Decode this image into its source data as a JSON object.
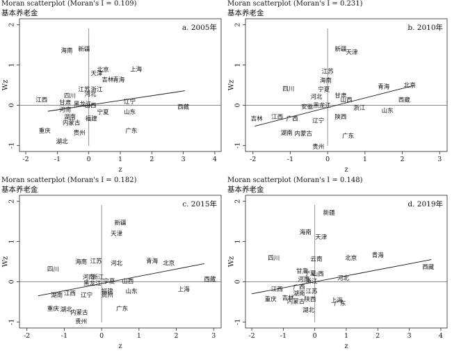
{
  "chart_data": [
    {
      "type": "scatter",
      "title": "Moran scatterplot (Moran's I = 0.109)",
      "subtitle": "基本养老金",
      "panel_label": "a. 2005年",
      "xlabel": "z",
      "ylabel": "Wz",
      "xlim": [
        -2.2,
        4.2
      ],
      "ylim": [
        -1.15,
        2.15
      ],
      "xticks": [
        -2,
        -1,
        0,
        1,
        2,
        3,
        4
      ],
      "yticks": [
        -1,
        0,
        1,
        2
      ],
      "regression": {
        "x": [
          -1.3,
          3.05
        ],
        "y": [
          -0.15,
          0.36
        ]
      },
      "points": [
        {
          "label": "海南",
          "x": -0.7,
          "y": 1.35
        },
        {
          "label": "新疆",
          "x": -0.15,
          "y": 1.38
        },
        {
          "label": "天津",
          "x": 0.25,
          "y": 0.78
        },
        {
          "label": "上海",
          "x": 1.5,
          "y": 0.88
        },
        {
          "label": "北京",
          "x": 0.45,
          "y": 0.87
        },
        {
          "label": "青海",
          "x": 0.95,
          "y": 0.62
        },
        {
          "label": "吉林",
          "x": 0.6,
          "y": 0.62
        },
        {
          "label": "江苏",
          "x": -0.15,
          "y": 0.38
        },
        {
          "label": "浙江",
          "x": 0.25,
          "y": 0.38
        },
        {
          "label": "河北",
          "x": 0.05,
          "y": 0.27
        },
        {
          "label": "江西",
          "x": -1.5,
          "y": 0.12
        },
        {
          "label": "四川",
          "x": -0.6,
          "y": 0.22
        },
        {
          "label": "甘肃",
          "x": -0.75,
          "y": 0.05
        },
        {
          "label": "黑龙江",
          "x": -0.2,
          "y": 0.02
        },
        {
          "label": "山西",
          "x": 0.05,
          "y": -0.02
        },
        {
          "label": "辽宁",
          "x": 1.3,
          "y": 0.08
        },
        {
          "label": "西藏",
          "x": 3.0,
          "y": -0.05
        },
        {
          "label": "河南",
          "x": -0.75,
          "y": -0.12
        },
        {
          "label": "湖南",
          "x": -0.6,
          "y": -0.3
        },
        {
          "label": "宁夏",
          "x": 0.45,
          "y": -0.18
        },
        {
          "label": "山东",
          "x": 1.3,
          "y": -0.18
        },
        {
          "label": "福建",
          "x": 0.08,
          "y": -0.35
        },
        {
          "label": "内蒙古",
          "x": -0.55,
          "y": -0.45
        },
        {
          "label": "重庆",
          "x": -1.4,
          "y": -0.65
        },
        {
          "label": "贵州",
          "x": -0.3,
          "y": -0.7
        },
        {
          "label": "广东",
          "x": 1.35,
          "y": -0.65
        },
        {
          "label": "湖北",
          "x": -0.85,
          "y": -0.92
        }
      ]
    },
    {
      "type": "scatter",
      "title": "Moran scatterplot (Moran's I = 0.231)",
      "subtitle": "基本养老金",
      "panel_label": "b. 2010年",
      "xlabel": "z",
      "ylabel": "Wz",
      "xlim": [
        -2.2,
        3.2
      ],
      "ylim": [
        -1.15,
        2.15
      ],
      "xticks": [
        -2,
        -1,
        0,
        1,
        2,
        3
      ],
      "yticks": [
        -1,
        0,
        1,
        2
      ],
      "regression": {
        "x": [
          -1.95,
          2.35
        ],
        "y": [
          -0.52,
          0.5
        ]
      },
      "points": [
        {
          "label": "新疆",
          "x": 0.35,
          "y": 1.38
        },
        {
          "label": "天津",
          "x": 0.65,
          "y": 1.3
        },
        {
          "label": "江苏",
          "x": 0.0,
          "y": 0.83
        },
        {
          "label": "海南",
          "x": -0.05,
          "y": 0.6
        },
        {
          "label": "四川",
          "x": -1.05,
          "y": 0.4
        },
        {
          "label": "宁夏",
          "x": -0.1,
          "y": 0.38
        },
        {
          "label": "青海",
          "x": 1.5,
          "y": 0.45
        },
        {
          "label": "北京",
          "x": 2.2,
          "y": 0.48
        },
        {
          "label": "河北",
          "x": -0.3,
          "y": 0.2
        },
        {
          "label": "甘肃",
          "x": 0.35,
          "y": 0.22
        },
        {
          "label": "山西",
          "x": 0.5,
          "y": 0.12
        },
        {
          "label": "西藏",
          "x": 2.05,
          "y": 0.12
        },
        {
          "label": "安徽",
          "x": -0.55,
          "y": -0.05
        },
        {
          "label": "黑龙江",
          "x": -0.15,
          "y": -0.02
        },
        {
          "label": "浙江",
          "x": 0.85,
          "y": -0.08
        },
        {
          "label": "山东",
          "x": 1.6,
          "y": -0.15
        },
        {
          "label": "吉林",
          "x": -1.9,
          "y": -0.35
        },
        {
          "label": "江西",
          "x": -1.35,
          "y": -0.3
        },
        {
          "label": "广西",
          "x": -0.95,
          "y": -0.35
        },
        {
          "label": "辽宁",
          "x": -0.25,
          "y": -0.4
        },
        {
          "label": "陕西",
          "x": 0.35,
          "y": -0.3
        },
        {
          "label": "湖南",
          "x": -1.1,
          "y": -0.7
        },
        {
          "label": "内蒙古",
          "x": -0.65,
          "y": -0.72
        },
        {
          "label": "广东",
          "x": 0.55,
          "y": -0.78
        },
        {
          "label": "贵州",
          "x": -0.25,
          "y": -1.05
        }
      ]
    },
    {
      "type": "scatter",
      "title": "Moran scatterplot (Moran's I = 0.182)",
      "subtitle": "基本养老金",
      "panel_label": "c. 2015年",
      "xlabel": "z",
      "ylabel": "Wz",
      "xlim": [
        -2.2,
        3.2
      ],
      "ylim": [
        -1.15,
        2.15
      ],
      "xticks": [
        -2,
        -1,
        0,
        1,
        2,
        3
      ],
      "yticks": [
        -1,
        0,
        1,
        2
      ],
      "regression": {
        "x": [
          -1.7,
          2.75
        ],
        "y": [
          -0.35,
          0.45
        ]
      },
      "points": [
        {
          "label": "新疆",
          "x": 0.5,
          "y": 1.45
        },
        {
          "label": "天津",
          "x": 0.4,
          "y": 1.18
        },
        {
          "label": "四川",
          "x": -1.3,
          "y": 0.3
        },
        {
          "label": "海南",
          "x": -0.55,
          "y": 0.48
        },
        {
          "label": "江苏",
          "x": -0.15,
          "y": 0.5
        },
        {
          "label": "河北",
          "x": 0.4,
          "y": 0.45
        },
        {
          "label": "青海",
          "x": 1.35,
          "y": 0.5
        },
        {
          "label": "北京",
          "x": 1.8,
          "y": 0.45
        },
        {
          "label": "西藏",
          "x": 2.9,
          "y": 0.05
        },
        {
          "label": "河南",
          "x": -0.35,
          "y": 0.1
        },
        {
          "label": "浙江",
          "x": -0.1,
          "y": 0.1
        },
        {
          "label": "宁夏",
          "x": 0.2,
          "y": 0.0
        },
        {
          "label": "山西",
          "x": 0.7,
          "y": 0.0
        },
        {
          "label": "黑龙江",
          "x": -0.25,
          "y": -0.05
        },
        {
          "label": "福建",
          "x": 0.15,
          "y": -0.25
        },
        {
          "label": "上海",
          "x": 2.2,
          "y": -0.2
        },
        {
          "label": "山东",
          "x": 0.8,
          "y": -0.25
        },
        {
          "label": "湖南",
          "x": -1.2,
          "y": -0.35
        },
        {
          "label": "江西",
          "x": -0.85,
          "y": -0.3
        },
        {
          "label": "辽宁",
          "x": -0.4,
          "y": -0.35
        },
        {
          "label": "贵州",
          "x": 0.15,
          "y": -0.35
        },
        {
          "label": "重庆",
          "x": -1.3,
          "y": -0.68
        },
        {
          "label": "湖北",
          "x": -0.95,
          "y": -0.7
        },
        {
          "label": "广东",
          "x": 0.55,
          "y": -0.68
        },
        {
          "label": "内蒙古",
          "x": -0.6,
          "y": -0.78
        },
        {
          "label": "贵州",
          "x": -0.55,
          "y": -1.0
        }
      ]
    },
    {
      "type": "scatter",
      "title": "Moran scatterplot (Moran's I = 0.148)",
      "subtitle": "基本养老金",
      "panel_label": "d. 2019年",
      "xlabel": "z",
      "ylabel": "Wz",
      "xlim": [
        -2.2,
        4.2
      ],
      "ylim": [
        -1.15,
        2.15
      ],
      "xticks": [
        -2,
        -1,
        0,
        1,
        2,
        3,
        4
      ],
      "yticks": [
        -1,
        0,
        1,
        2
      ],
      "regression": {
        "x": [
          -2.0,
          3.7
        ],
        "y": [
          -0.3,
          0.55
        ]
      },
      "points": [
        {
          "label": "新疆",
          "x": 0.45,
          "y": 1.7
        },
        {
          "label": "海南",
          "x": -0.3,
          "y": 1.22
        },
        {
          "label": "天津",
          "x": 0.2,
          "y": 1.1
        },
        {
          "label": "四川",
          "x": -1.3,
          "y": 0.58
        },
        {
          "label": "云南",
          "x": 0.05,
          "y": 0.55
        },
        {
          "label": "北京",
          "x": 1.15,
          "y": 0.58
        },
        {
          "label": "青海",
          "x": 2.0,
          "y": 0.65
        },
        {
          "label": "西藏",
          "x": 3.6,
          "y": 0.35
        },
        {
          "label": "甘肃",
          "x": -0.4,
          "y": 0.25
        },
        {
          "label": "宁夏",
          "x": -0.15,
          "y": 0.2
        },
        {
          "label": "山西",
          "x": 0.1,
          "y": 0.18
        },
        {
          "label": "河北",
          "x": 0.9,
          "y": 0.08
        },
        {
          "label": "河南",
          "x": -0.35,
          "y": 0.05
        },
        {
          "label": "浙江",
          "x": -0.1,
          "y": 0.0
        },
        {
          "label": "江西",
          "x": -1.2,
          "y": -0.2
        },
        {
          "label": "湖南",
          "x": -0.5,
          "y": -0.3
        },
        {
          "label": "江苏",
          "x": -0.1,
          "y": -0.25
        },
        {
          "label": "广西",
          "x": -0.5,
          "y": -0.15
        },
        {
          "label": "重庆",
          "x": -1.4,
          "y": -0.45
        },
        {
          "label": "吉林",
          "x": -0.85,
          "y": -0.42
        },
        {
          "label": "内蒙古",
          "x": -0.6,
          "y": -0.5
        },
        {
          "label": "陕西",
          "x": -0.15,
          "y": -0.45
        },
        {
          "label": "上海",
          "x": 0.7,
          "y": -0.48
        },
        {
          "label": "广东",
          "x": 0.8,
          "y": -0.55
        },
        {
          "label": "湖北",
          "x": -0.2,
          "y": -0.72
        }
      ]
    }
  ]
}
